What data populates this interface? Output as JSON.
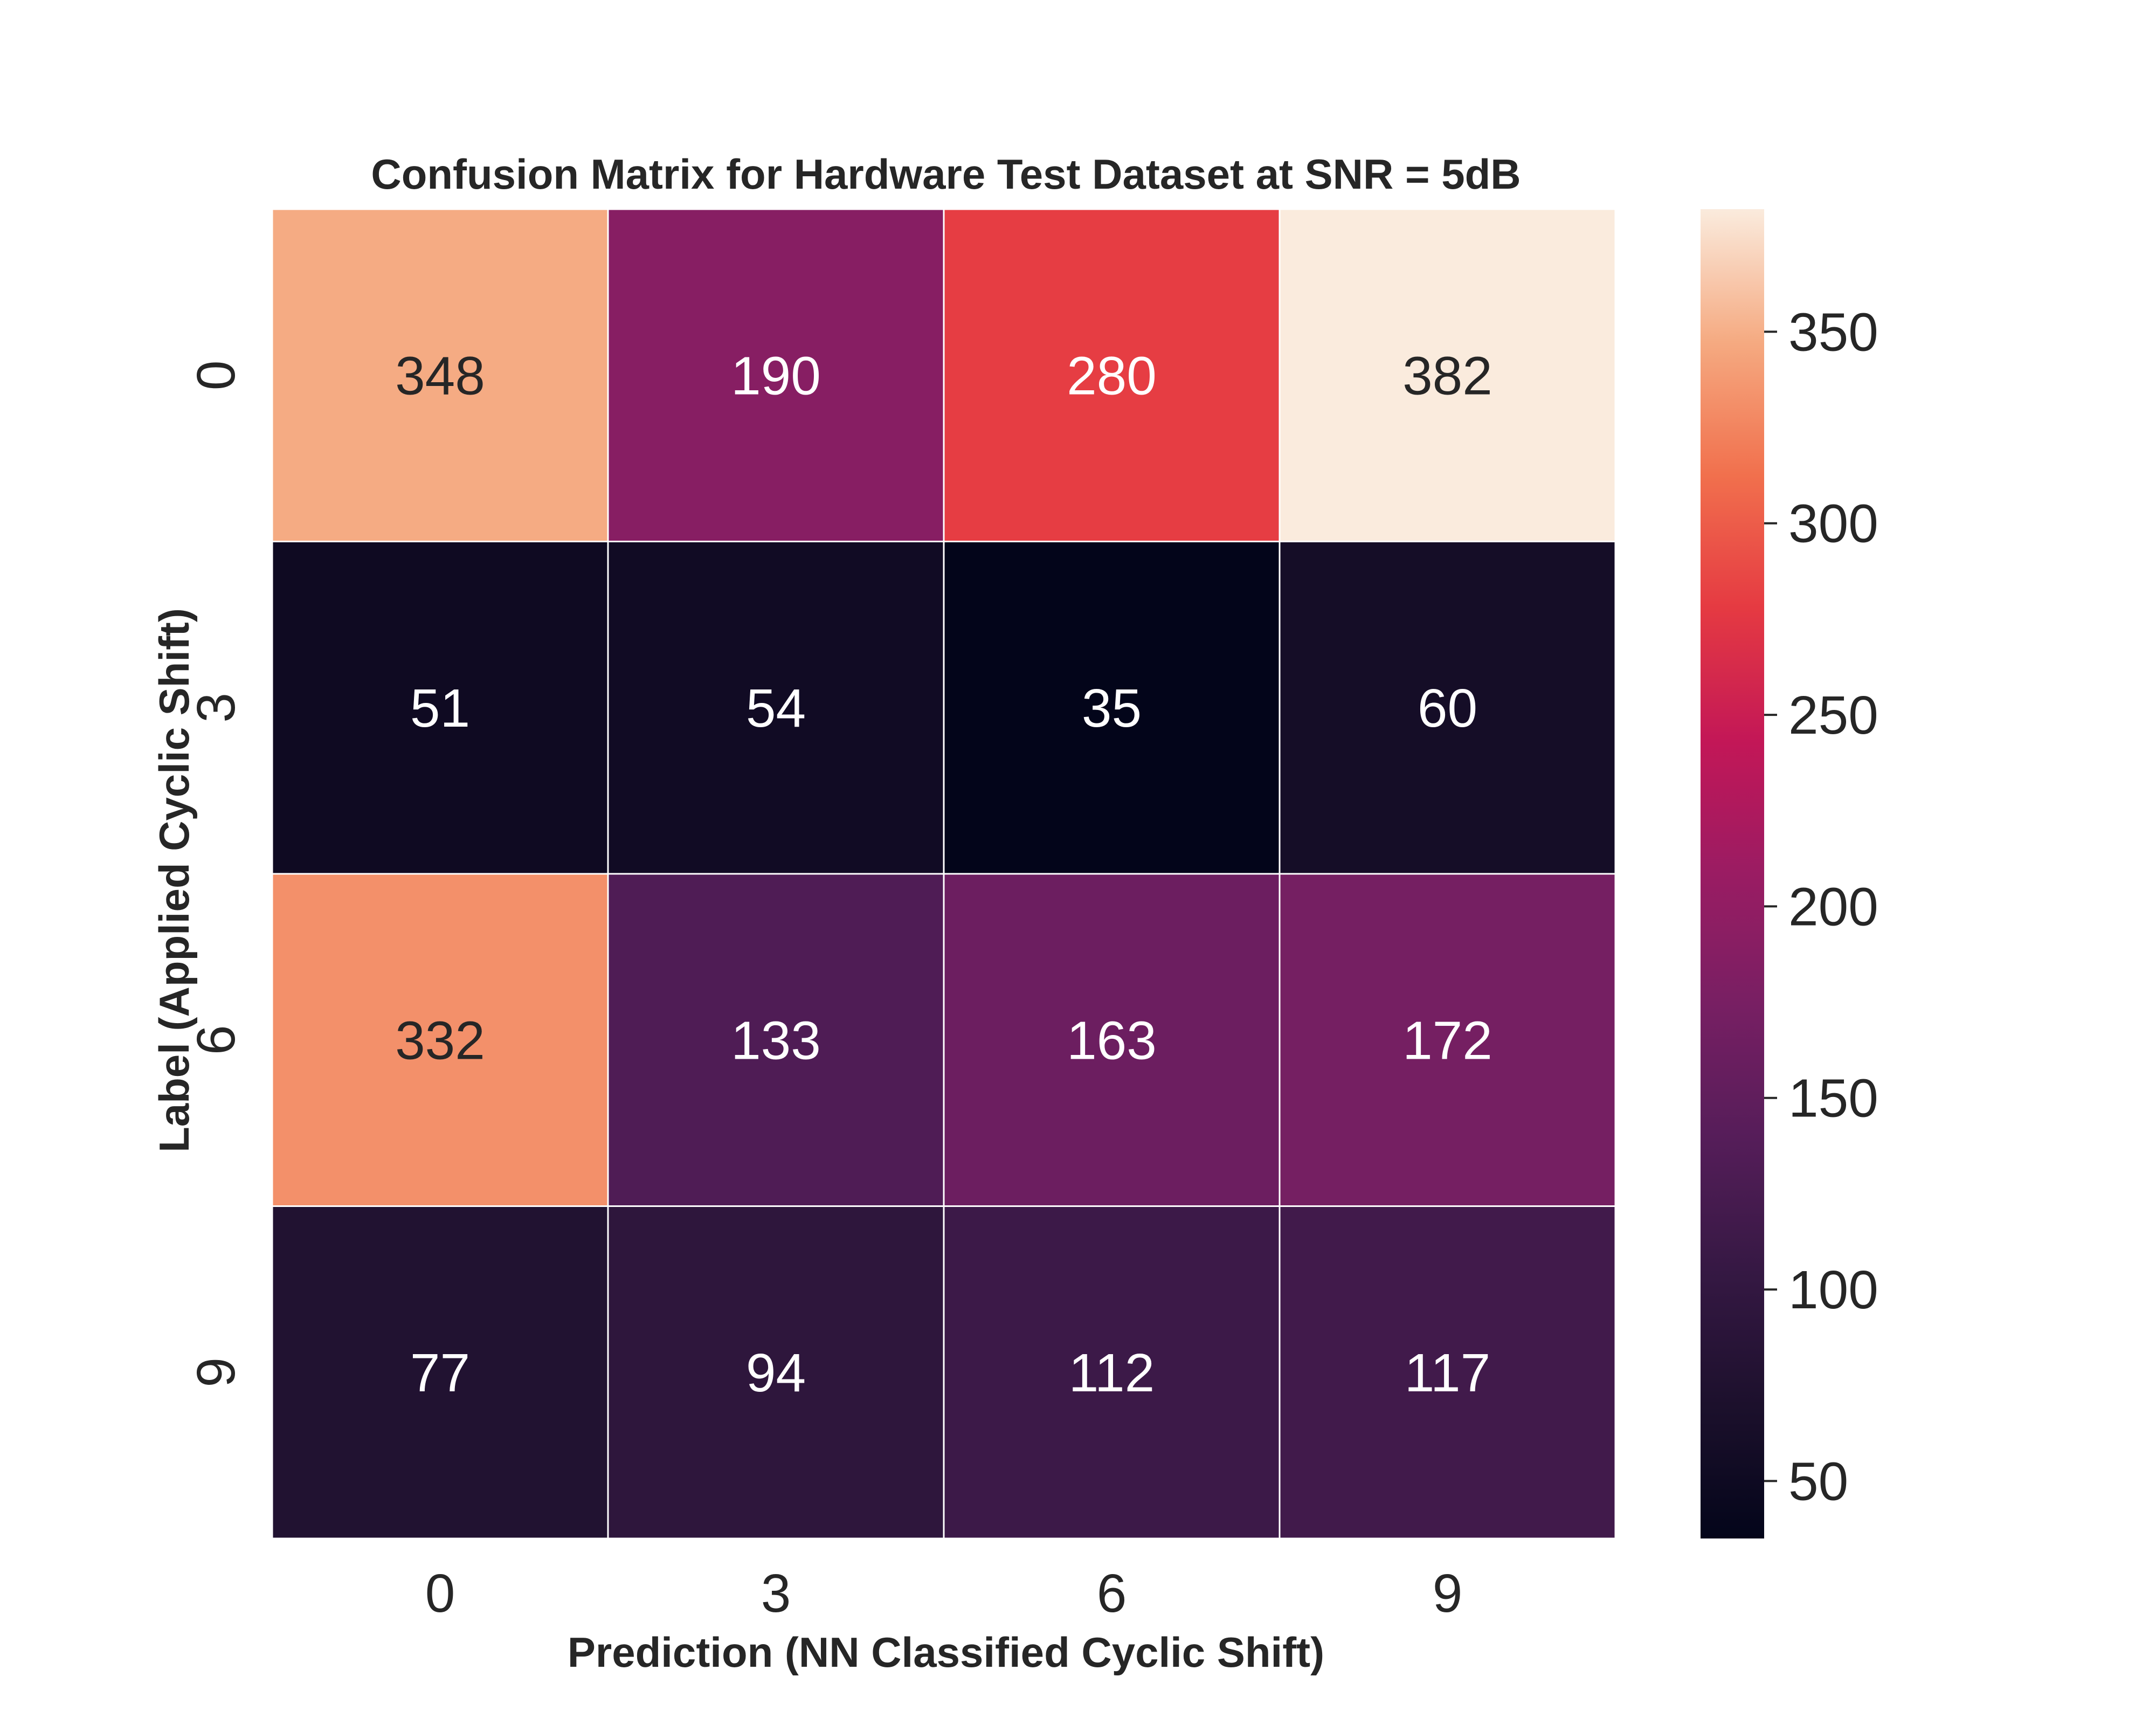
{
  "chart_data": {
    "type": "heatmap",
    "title": "Confusion Matrix for Hardware Test Dataset at SNR = 5dB",
    "xlabel": "Prediction (NN Classified Cyclic Shift)",
    "ylabel": "Label (Applied Cyclic Shift)",
    "x_categories": [
      "0",
      "3",
      "6",
      "9"
    ],
    "y_categories": [
      "0",
      "3",
      "6",
      "9"
    ],
    "values": [
      [
        348,
        190,
        280,
        382
      ],
      [
        51,
        54,
        35,
        60
      ],
      [
        332,
        133,
        163,
        172
      ],
      [
        77,
        94,
        112,
        117
      ]
    ],
    "colormap": "rocket",
    "colorbar": {
      "min": 35,
      "max": 382,
      "ticks": [
        50,
        100,
        150,
        200,
        250,
        300,
        350
      ]
    },
    "grid": false,
    "cell_separator_color": "#ffffff"
  }
}
